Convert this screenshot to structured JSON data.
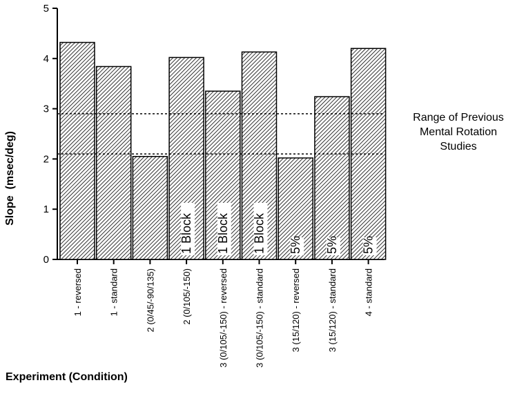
{
  "chart_data": {
    "type": "bar",
    "title": "",
    "ylabel": "Slope  (msec/deg)",
    "xlabel": "Experiment (Condition)",
    "ylim": [
      0,
      5
    ],
    "yticks": [
      "0",
      "1",
      "2",
      "3",
      "4",
      "5"
    ],
    "categories": [
      "1 - reversed",
      "1 - standard",
      "2 (0/45/-90/135)",
      "2 (0/105/-150)",
      "3 (0/105/-150) - reversed",
      "3 (0/105/-150) - standard",
      "3 (15/120) - reversed",
      "3 (15/120) - standard",
      "4 - standard"
    ],
    "values": [
      4.32,
      3.84,
      2.05,
      4.02,
      3.35,
      4.13,
      2.02,
      3.24,
      4.2
    ],
    "bar_labels": [
      "",
      "",
      "",
      "1 Block",
      "1 Block",
      "1 Block",
      "5%",
      "5%",
      "5%"
    ],
    "reference_range": {
      "low": 2.1,
      "high": 2.9,
      "label_lines": [
        "Range of Previous",
        "Mental Rotation",
        "Studies"
      ]
    },
    "bar_fill": "diagonal-hatch",
    "grid": false,
    "legend": "none"
  }
}
